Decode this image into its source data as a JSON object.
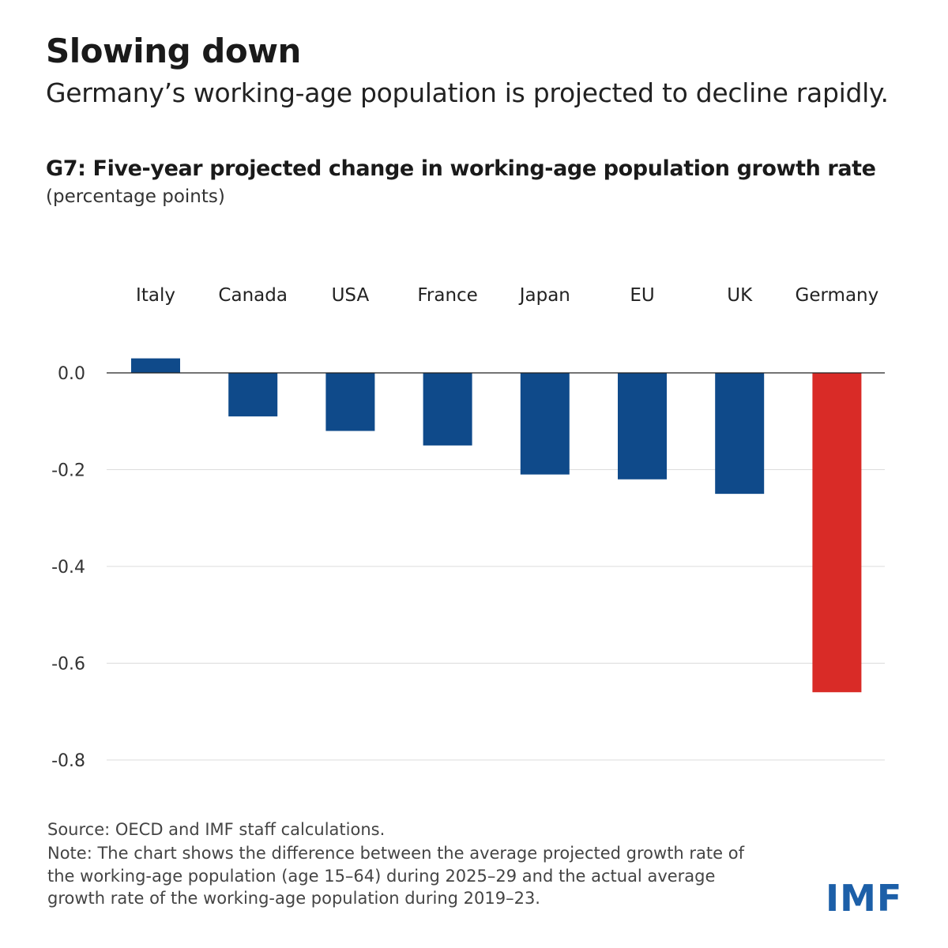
{
  "header": {
    "title": "Slowing down",
    "subtitle": "Germany’s working-age population is projected to decline rapidly."
  },
  "chart_data": {
    "type": "bar",
    "title": "G7: Five-year projected change in working-age population growth rate",
    "subtitle": "(percentage points)",
    "categories": [
      "Italy",
      "Canada",
      "USA",
      "France",
      "Japan",
      "EU",
      "UK",
      "Germany"
    ],
    "values": [
      0.03,
      -0.09,
      -0.12,
      -0.15,
      -0.21,
      -0.22,
      -0.25,
      -0.66
    ],
    "colors": [
      "#0f4a8a",
      "#0f4a8a",
      "#0f4a8a",
      "#0f4a8a",
      "#0f4a8a",
      "#0f4a8a",
      "#0f4a8a",
      "#d92b27"
    ],
    "ylim": [
      -0.8,
      0.0
    ],
    "yticks": [
      "0.0",
      "-0.2",
      "-0.4",
      "-0.6",
      "-0.8"
    ],
    "category_labels_position": "top",
    "grid": true
  },
  "footer": {
    "source": "Source: OECD and IMF staff calculations.",
    "note_lines": [
      "Note: The chart shows the difference between the average projected growth rate of",
      "the working-age population (age 15–64) during 2025–29 and the actual average",
      "growth rate of the working-age population during 2019–23."
    ],
    "logo": "IMF"
  }
}
